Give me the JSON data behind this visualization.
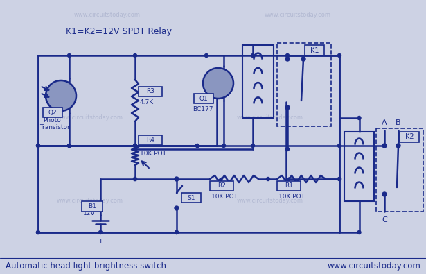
{
  "bg_color": "#cdd2e4",
  "line_color": "#1a2a8a",
  "text_color": "#1a2a8a",
  "watermark_color": "#9099bb",
  "title_text": "Automatic head light brightness switch",
  "website_text": "www.circuitstoday.com",
  "watermark_text": "www.circuitstoday.com",
  "relay_label": "K1=K2=12V SPDT Relay",
  "fig_width": 6.15,
  "fig_height": 3.95,
  "dpi": 100
}
